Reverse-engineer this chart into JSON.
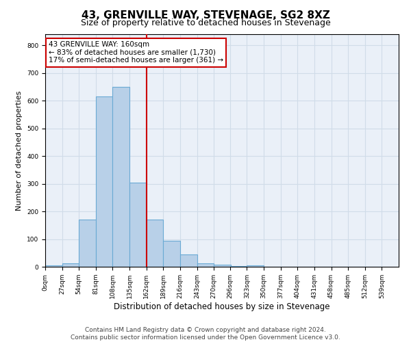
{
  "title": "43, GRENVILLE WAY, STEVENAGE, SG2 8XZ",
  "subtitle": "Size of property relative to detached houses in Stevenage",
  "xlabel": "Distribution of detached houses by size in Stevenage",
  "ylabel": "Number of detached properties",
  "bar_left_edges": [
    0,
    27,
    54,
    81,
    108,
    135,
    162,
    189,
    216,
    243,
    270,
    296,
    323,
    350,
    377,
    404,
    431,
    458,
    485,
    512
  ],
  "bar_heights": [
    5,
    12,
    170,
    615,
    650,
    305,
    170,
    95,
    45,
    12,
    8,
    3,
    5,
    0,
    0,
    0,
    0,
    0,
    0,
    0
  ],
  "bin_width": 27,
  "bar_color": "#b8d0e8",
  "bar_edge_color": "#6aaad4",
  "property_line_x": 162,
  "property_line_color": "#cc0000",
  "annotation_text": "43 GRENVILLE WAY: 160sqm\n← 83% of detached houses are smaller (1,730)\n17% of semi-detached houses are larger (361) →",
  "annotation_box_color": "#cc0000",
  "annotation_text_color": "#000000",
  "ylim": [
    0,
    840
  ],
  "yticks": [
    0,
    100,
    200,
    300,
    400,
    500,
    600,
    700,
    800
  ],
  "xtick_labels": [
    "0sqm",
    "27sqm",
    "54sqm",
    "81sqm",
    "108sqm",
    "135sqm",
    "162sqm",
    "189sqm",
    "216sqm",
    "243sqm",
    "270sqm",
    "296sqm",
    "323sqm",
    "350sqm",
    "377sqm",
    "404sqm",
    "431sqm",
    "458sqm",
    "485sqm",
    "512sqm",
    "539sqm"
  ],
  "xtick_positions": [
    0,
    27,
    54,
    81,
    108,
    135,
    162,
    189,
    216,
    243,
    270,
    296,
    323,
    350,
    377,
    404,
    431,
    458,
    485,
    512,
    539
  ],
  "grid_color": "#d0dce8",
  "background_color": "#eaf0f8",
  "footer_line1": "Contains HM Land Registry data © Crown copyright and database right 2024.",
  "footer_line2": "Contains public sector information licensed under the Open Government Licence v3.0.",
  "title_fontsize": 11,
  "subtitle_fontsize": 9,
  "xlabel_fontsize": 8.5,
  "ylabel_fontsize": 8,
  "tick_fontsize": 6.5,
  "footer_fontsize": 6.5,
  "annotation_fontsize": 7.5,
  "xlim_max": 566
}
